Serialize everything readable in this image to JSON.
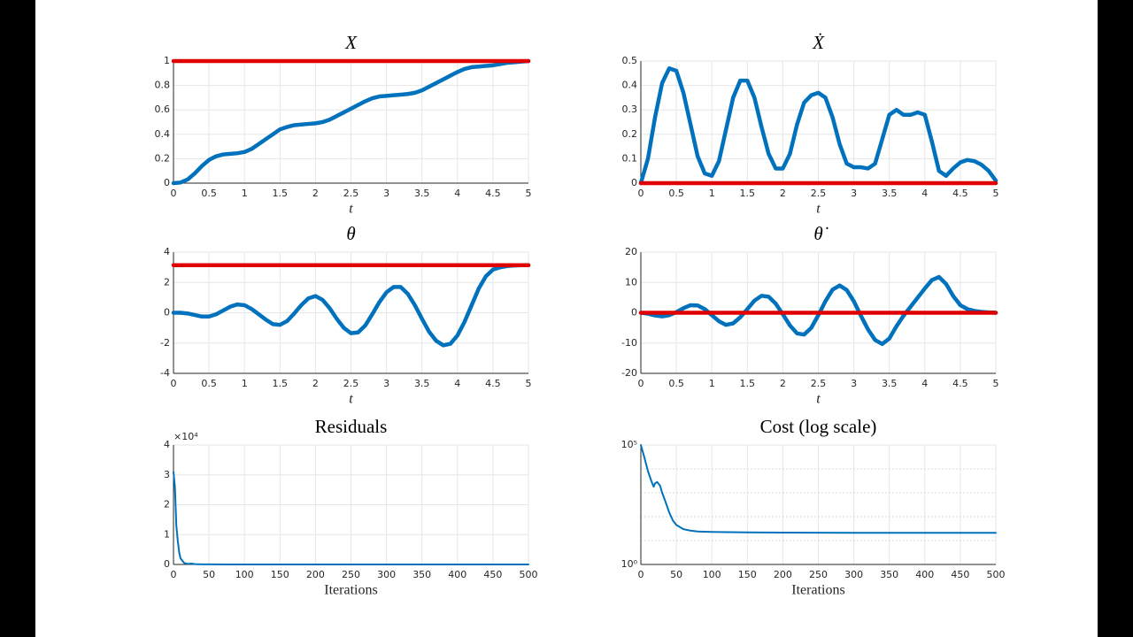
{
  "chart_data": [
    {
      "type": "line",
      "title": "X",
      "xlabel": "t",
      "grid": true,
      "x": [
        0,
        0.1,
        0.2,
        0.3,
        0.4,
        0.5,
        0.6,
        0.7,
        0.8,
        0.9,
        1,
        1.1,
        1.2,
        1.3,
        1.4,
        1.5,
        1.6,
        1.7,
        1.8,
        1.9,
        2,
        2.1,
        2.2,
        2.3,
        2.4,
        2.5,
        2.6,
        2.7,
        2.8,
        2.9,
        3,
        3.1,
        3.2,
        3.3,
        3.4,
        3.5,
        3.6,
        3.7,
        3.8,
        3.9,
        4,
        4.1,
        4.2,
        4.3,
        4.4,
        4.5,
        4.6,
        4.7,
        4.8,
        4.9,
        5
      ],
      "xlim": [
        0,
        5
      ],
      "xticks": [
        0,
        0.5,
        1,
        1.5,
        2,
        2.5,
        3,
        3.5,
        4,
        4.5,
        5
      ],
      "ylim": [
        0,
        1
      ],
      "yticks": [
        0,
        0.2,
        0.4,
        0.6,
        0.8,
        1
      ],
      "series": [
        {
          "color": "#0072bd",
          "values": [
            0,
            0.005,
            0.03,
            0.08,
            0.14,
            0.19,
            0.22,
            0.235,
            0.24,
            0.245,
            0.255,
            0.28,
            0.32,
            0.36,
            0.4,
            0.44,
            0.46,
            0.475,
            0.48,
            0.485,
            0.49,
            0.5,
            0.52,
            0.55,
            0.58,
            0.61,
            0.64,
            0.67,
            0.695,
            0.71,
            0.715,
            0.72,
            0.725,
            0.73,
            0.74,
            0.76,
            0.79,
            0.82,
            0.85,
            0.88,
            0.91,
            0.935,
            0.95,
            0.955,
            0.96,
            0.965,
            0.975,
            0.985,
            0.99,
            0.995,
            1
          ]
        },
        {
          "color": "#e00000",
          "values": [
            1,
            1,
            1,
            1,
            1,
            1,
            1,
            1,
            1,
            1,
            1,
            1,
            1,
            1,
            1,
            1,
            1,
            1,
            1,
            1,
            1,
            1,
            1,
            1,
            1,
            1,
            1,
            1,
            1,
            1,
            1,
            1,
            1,
            1,
            1,
            1,
            1,
            1,
            1,
            1,
            1,
            1,
            1,
            1,
            1,
            1,
            1,
            1,
            1,
            1,
            1
          ]
        }
      ]
    },
    {
      "type": "line",
      "title": "Ẋ",
      "xlabel": "t",
      "grid": true,
      "x": [
        0,
        0.1,
        0.2,
        0.3,
        0.4,
        0.5,
        0.6,
        0.7,
        0.8,
        0.9,
        1,
        1.1,
        1.2,
        1.3,
        1.4,
        1.5,
        1.6,
        1.7,
        1.8,
        1.9,
        2,
        2.1,
        2.2,
        2.3,
        2.4,
        2.5,
        2.6,
        2.7,
        2.8,
        2.9,
        3,
        3.1,
        3.2,
        3.3,
        3.4,
        3.5,
        3.6,
        3.7,
        3.8,
        3.9,
        4,
        4.1,
        4.2,
        4.3,
        4.4,
        4.5,
        4.6,
        4.7,
        4.8,
        4.9,
        5
      ],
      "xlim": [
        0,
        5
      ],
      "xticks": [
        0,
        0.5,
        1,
        1.5,
        2,
        2.5,
        3,
        3.5,
        4,
        4.5,
        5
      ],
      "ylim": [
        0,
        0.5
      ],
      "yticks": [
        0,
        0.1,
        0.2,
        0.3,
        0.4,
        0.5
      ],
      "series": [
        {
          "color": "#0072bd",
          "values": [
            0,
            0.1,
            0.27,
            0.41,
            0.47,
            0.46,
            0.37,
            0.24,
            0.11,
            0.04,
            0.03,
            0.09,
            0.22,
            0.35,
            0.42,
            0.42,
            0.35,
            0.23,
            0.12,
            0.06,
            0.06,
            0.12,
            0.24,
            0.33,
            0.36,
            0.37,
            0.35,
            0.27,
            0.16,
            0.08,
            0.065,
            0.065,
            0.06,
            0.08,
            0.18,
            0.28,
            0.3,
            0.28,
            0.28,
            0.29,
            0.28,
            0.17,
            0.05,
            0.03,
            0.06,
            0.085,
            0.095,
            0.09,
            0.075,
            0.05,
            0.01
          ]
        },
        {
          "color": "#e00000",
          "values": [
            0,
            0,
            0,
            0,
            0,
            0,
            0,
            0,
            0,
            0,
            0,
            0,
            0,
            0,
            0,
            0,
            0,
            0,
            0,
            0,
            0,
            0,
            0,
            0,
            0,
            0,
            0,
            0,
            0,
            0,
            0,
            0,
            0,
            0,
            0,
            0,
            0,
            0,
            0,
            0,
            0,
            0,
            0,
            0,
            0,
            0,
            0,
            0,
            0,
            0,
            0
          ]
        }
      ]
    },
    {
      "type": "line",
      "title": "θ",
      "xlabel": "t",
      "grid": true,
      "x": [
        0,
        0.1,
        0.2,
        0.3,
        0.4,
        0.5,
        0.6,
        0.7,
        0.8,
        0.9,
        1,
        1.1,
        1.2,
        1.3,
        1.4,
        1.5,
        1.6,
        1.7,
        1.8,
        1.9,
        2,
        2.1,
        2.2,
        2.3,
        2.4,
        2.5,
        2.6,
        2.7,
        2.8,
        2.9,
        3,
        3.1,
        3.2,
        3.3,
        3.4,
        3.5,
        3.6,
        3.7,
        3.8,
        3.9,
        4,
        4.1,
        4.2,
        4.3,
        4.4,
        4.5,
        4.6,
        4.7,
        4.8,
        4.9,
        5
      ],
      "xlim": [
        0,
        5
      ],
      "xticks": [
        0,
        0.5,
        1,
        1.5,
        2,
        2.5,
        3,
        3.5,
        4,
        4.5,
        5
      ],
      "ylim": [
        -4,
        4
      ],
      "yticks": [
        -4,
        -2,
        0,
        2,
        4
      ],
      "series": [
        {
          "color": "#0072bd",
          "values": [
            0,
            0,
            -0.05,
            -0.15,
            -0.25,
            -0.25,
            -0.1,
            0.15,
            0.4,
            0.55,
            0.5,
            0.25,
            -0.1,
            -0.45,
            -0.75,
            -0.8,
            -0.55,
            -0.05,
            0.5,
            0.95,
            1.1,
            0.85,
            0.3,
            -0.4,
            -1,
            -1.35,
            -1.3,
            -0.85,
            -0.1,
            0.7,
            1.35,
            1.7,
            1.7,
            1.25,
            0.5,
            -0.4,
            -1.25,
            -1.85,
            -2.15,
            -2.05,
            -1.5,
            -0.6,
            0.5,
            1.6,
            2.4,
            2.85,
            3,
            3.08,
            3.12,
            3.14,
            3.14
          ]
        },
        {
          "color": "#e00000",
          "values": [
            3.14,
            3.14,
            3.14,
            3.14,
            3.14,
            3.14,
            3.14,
            3.14,
            3.14,
            3.14,
            3.14,
            3.14,
            3.14,
            3.14,
            3.14,
            3.14,
            3.14,
            3.14,
            3.14,
            3.14,
            3.14,
            3.14,
            3.14,
            3.14,
            3.14,
            3.14,
            3.14,
            3.14,
            3.14,
            3.14,
            3.14,
            3.14,
            3.14,
            3.14,
            3.14,
            3.14,
            3.14,
            3.14,
            3.14,
            3.14,
            3.14,
            3.14,
            3.14,
            3.14,
            3.14,
            3.14,
            3.14,
            3.14,
            3.14,
            3.14,
            3.14
          ]
        }
      ]
    },
    {
      "type": "line",
      "title": "θ̇",
      "xlabel": "t",
      "grid": true,
      "x": [
        0,
        0.1,
        0.2,
        0.3,
        0.4,
        0.5,
        0.6,
        0.7,
        0.8,
        0.9,
        1,
        1.1,
        1.2,
        1.3,
        1.4,
        1.5,
        1.6,
        1.7,
        1.8,
        1.9,
        2,
        2.1,
        2.2,
        2.3,
        2.4,
        2.5,
        2.6,
        2.7,
        2.8,
        2.9,
        3,
        3.1,
        3.2,
        3.3,
        3.4,
        3.5,
        3.6,
        3.7,
        3.8,
        3.9,
        4,
        4.1,
        4.2,
        4.3,
        4.4,
        4.5,
        4.6,
        4.7,
        4.8,
        4.9,
        5
      ],
      "xlim": [
        0,
        5
      ],
      "xticks": [
        0,
        0.5,
        1,
        1.5,
        2,
        2.5,
        3,
        3.5,
        4,
        4.5,
        5
      ],
      "ylim": [
        -20,
        20
      ],
      "yticks": [
        -20,
        -10,
        0,
        10,
        20
      ],
      "series": [
        {
          "color": "#0072bd",
          "values": [
            0,
            -0.3,
            -0.9,
            -1.2,
            -0.8,
            0.2,
            1.5,
            2.5,
            2.4,
            1.2,
            -0.8,
            -2.8,
            -4,
            -3.5,
            -1.5,
            1.2,
            4,
            5.6,
            5.3,
            3,
            -0.5,
            -4.2,
            -6.8,
            -7.2,
            -5,
            -0.8,
            3.8,
            7.6,
            9,
            7.5,
            3.8,
            -1,
            -5.5,
            -9,
            -10.3,
            -8.5,
            -4.5,
            -1,
            2,
            5,
            8,
            10.8,
            11.8,
            9.5,
            5.5,
            2.5,
            1.2,
            0.6,
            0.3,
            0.1,
            0
          ]
        },
        {
          "color": "#e00000",
          "values": [
            0,
            0,
            0,
            0,
            0,
            0,
            0,
            0,
            0,
            0,
            0,
            0,
            0,
            0,
            0,
            0,
            0,
            0,
            0,
            0,
            0,
            0,
            0,
            0,
            0,
            0,
            0,
            0,
            0,
            0,
            0,
            0,
            0,
            0,
            0,
            0,
            0,
            0,
            0,
            0,
            0,
            0,
            0,
            0,
            0,
            0,
            0,
            0,
            0,
            0,
            0
          ]
        }
      ]
    },
    {
      "type": "line",
      "title": "Residuals",
      "xlabel": "Iterations",
      "grid": true,
      "y_multiplier": "×10⁴",
      "x": [
        0,
        2,
        4,
        6,
        8,
        10,
        15,
        20,
        25,
        30,
        40,
        50,
        100,
        150,
        200,
        250,
        300,
        350,
        400,
        450,
        500
      ],
      "xlim": [
        0,
        500
      ],
      "xticks": [
        0,
        50,
        100,
        150,
        200,
        250,
        300,
        350,
        400,
        450,
        500
      ],
      "ylim": [
        0,
        4
      ],
      "yticks": [
        0,
        1,
        2,
        3,
        4
      ],
      "series": [
        {
          "color": "#0072bd",
          "values": [
            3.1,
            2.6,
            1.3,
            0.8,
            0.4,
            0.2,
            0.05,
            0.02,
            0.03,
            0.01,
            0.005,
            0.002,
            0.001,
            0.001,
            0.001,
            0.001,
            0.001,
            0.001,
            0.001,
            0.001,
            0.001
          ]
        }
      ]
    },
    {
      "type": "line",
      "title": "Cost (log scale)",
      "xlabel": "Iterations",
      "grid": true,
      "yscale": "log",
      "x": [
        0,
        5,
        10,
        15,
        18,
        20,
        23,
        27,
        30,
        35,
        40,
        45,
        50,
        60,
        70,
        80,
        100,
        150,
        200,
        300,
        400,
        500
      ],
      "xlim": [
        0,
        500
      ],
      "xticks": [
        0,
        50,
        100,
        150,
        200,
        250,
        300,
        350,
        400,
        450,
        500
      ],
      "ylim": [
        1,
        100000
      ],
      "yticks": [
        {
          "value": 1,
          "label": "10⁰"
        },
        {
          "value": 100000,
          "label": "10⁵"
        }
      ],
      "minor_yticks": [
        10,
        100,
        1000,
        10000
      ],
      "series": [
        {
          "color": "#0072bd",
          "values": [
            100000,
            30000,
            8000,
            3000,
            1800,
            2500,
            2800,
            2000,
            1000,
            400,
            150,
            70,
            45,
            30,
            26,
            24,
            23,
            22,
            21.5,
            21,
            21,
            21
          ]
        }
      ]
    }
  ]
}
